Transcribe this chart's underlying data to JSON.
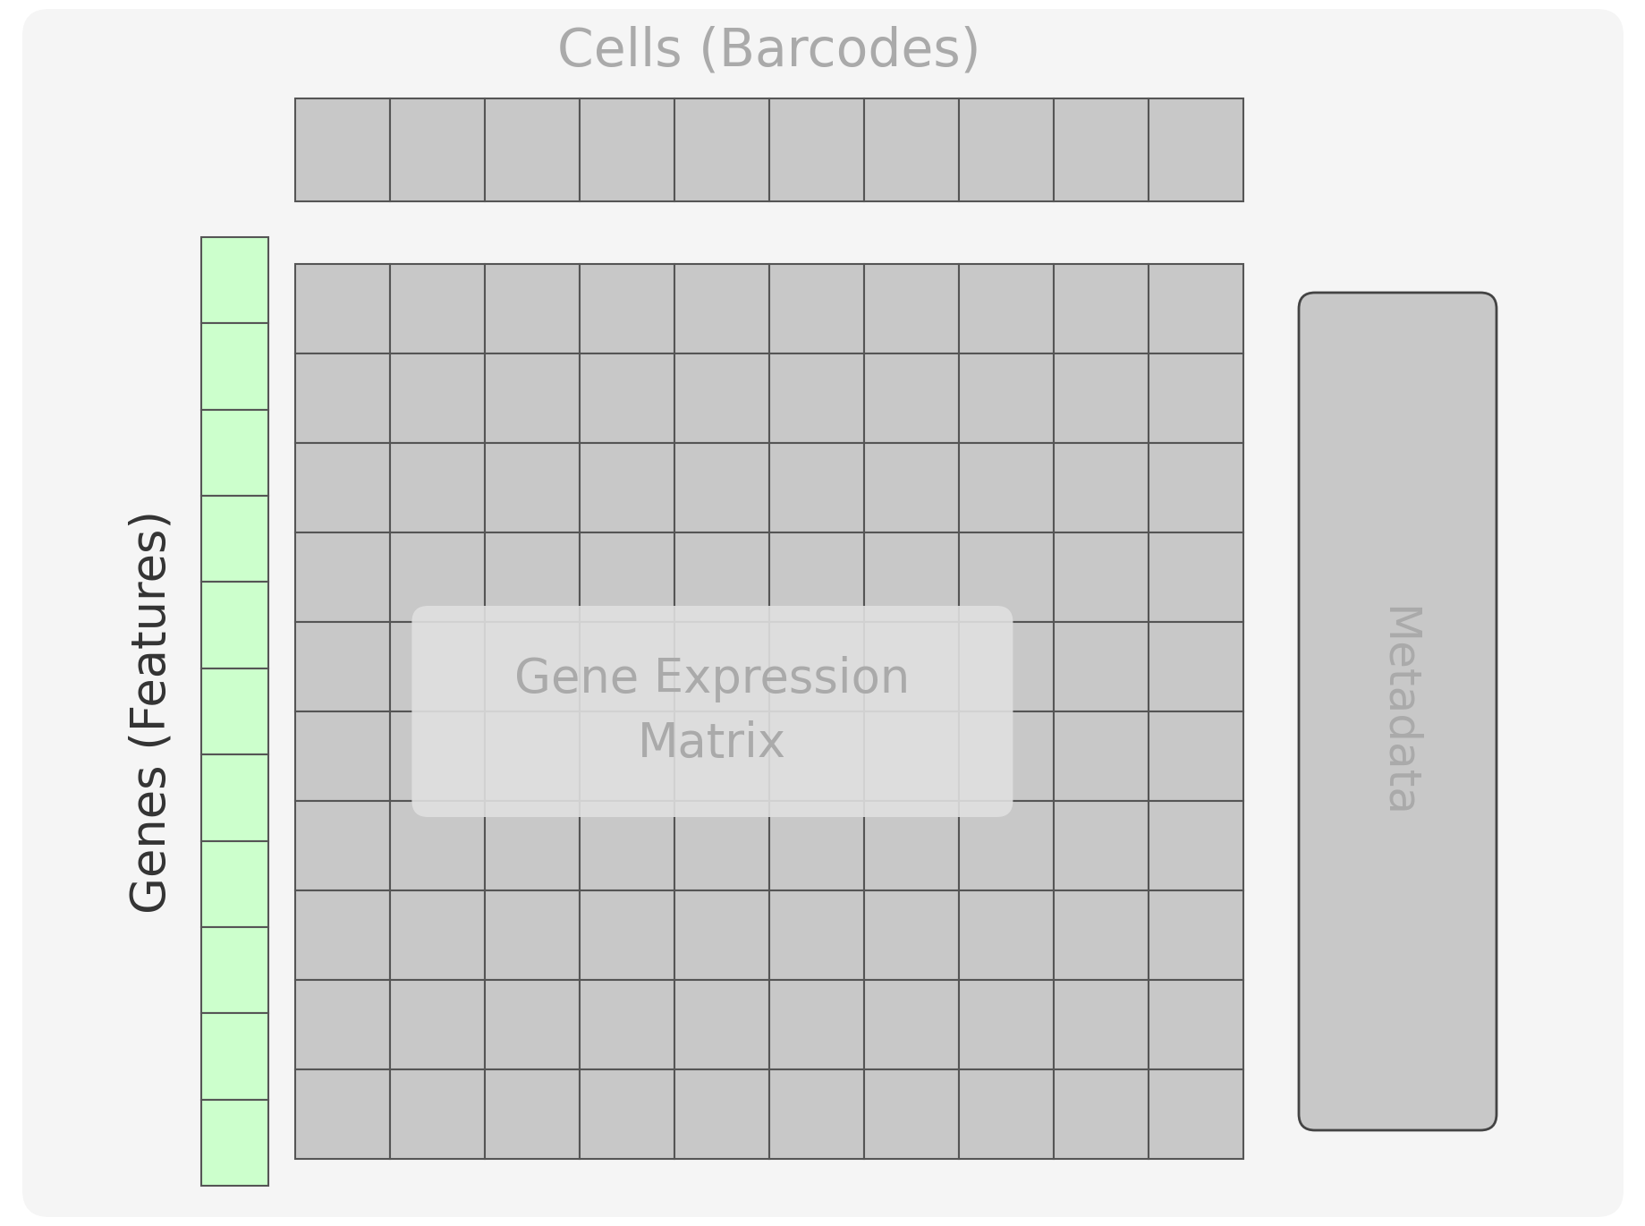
{
  "figure_bg": "#ffffff",
  "panel_bg": "#f0f0f0",
  "title_cells": "Cells (Barcodes)",
  "title_cells_color": "#aaaaaa",
  "title_cells_fontsize": 42,
  "label_genes": "Genes (Features)",
  "label_genes_color": "#333333",
  "label_genes_fontsize": 38,
  "label_metadata": "Metadata",
  "label_metadata_color": "#aaaaaa",
  "label_metadata_fontsize": 36,
  "matrix_label": "Gene Expression\nMatrix",
  "matrix_label_color": "#aaaaaa",
  "matrix_label_fontsize": 38,
  "grid_color": "#555555",
  "matrix_fill": "#c8c8c8",
  "genes_col_fill": "#ccffcc",
  "genes_col_border": "#555555",
  "barcodes_row_fill": "#c8c8c8",
  "barcodes_row_border": "#555555",
  "metadata_fill": "#c8c8c8",
  "metadata_border": "#444444",
  "n_cols": 10,
  "n_rows": 10,
  "barcode_n_cols": 10,
  "genes_n_rows": 11
}
